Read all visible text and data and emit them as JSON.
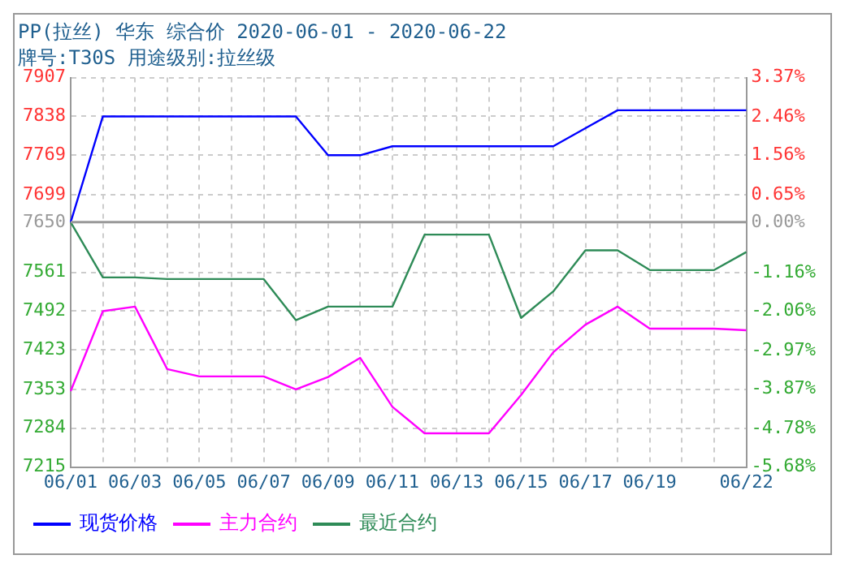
{
  "chart_data": {
    "type": "line",
    "title": "PP(拉丝) 华东 综合价 2020-06-01 - 2020-06-22",
    "subtitle": "牌号:T30S 用途级别:拉丝级",
    "categories": [
      "06/01",
      null,
      "06/03",
      null,
      "06/05",
      null,
      "06/07",
      null,
      "06/09",
      null,
      "06/11",
      null,
      "06/13",
      null,
      "06/15",
      null,
      "06/17",
      null,
      "06/19",
      null,
      null,
      "06/22"
    ],
    "series": [
      {
        "name": "现货价格",
        "color": "#0000ff",
        "values": [
          7650,
          7838,
          7838,
          7838,
          7838,
          7838,
          7838,
          7838,
          7769,
          7769,
          7785,
          7785,
          7785,
          7785,
          7785,
          7785,
          7817,
          7849,
          7849,
          7849,
          7849,
          7849
        ]
      },
      {
        "name": "主力合约",
        "color": "#ff00ff",
        "values": [
          7350,
          7492,
          7500,
          7389,
          7376,
          7376,
          7376,
          7353,
          7375,
          7409,
          7322,
          7275,
          7275,
          7275,
          7343,
          7419,
          7468,
          7500,
          7461,
          7461,
          7461,
          7458
        ]
      },
      {
        "name": "最近合约",
        "color": "#2e8b57",
        "values": [
          7650,
          7552,
          7552,
          7549,
          7549,
          7549,
          7549,
          7476,
          7500,
          7500,
          7500,
          7628,
          7628,
          7628,
          7480,
          7527,
          7600,
          7600,
          7565,
          7565,
          7565,
          7597
        ]
      }
    ],
    "ylim": [
      7215,
      7907
    ],
    "yticks": [
      7215,
      7284,
      7353,
      7423,
      7492,
      7561,
      7650,
      7699,
      7769,
      7838,
      7907
    ],
    "y2lim": [
      -5.68,
      3.37
    ],
    "y2ticks": [
      {
        "value": -5.68,
        "label": "-5.68%"
      },
      {
        "value": -4.78,
        "label": "-4.78%"
      },
      {
        "value": -3.87,
        "label": "-3.87%"
      },
      {
        "value": -2.97,
        "label": "-2.97%"
      },
      {
        "value": -2.06,
        "label": "-2.06%"
      },
      {
        "value": -1.16,
        "label": "-1.16%"
      },
      {
        "value": 0,
        "label": "0.00%"
      },
      {
        "value": 0.65,
        "label": "0.65%"
      },
      {
        "value": 1.56,
        "label": "1.56%"
      },
      {
        "value": 2.46,
        "label": "2.46%"
      },
      {
        "value": 3.37,
        "label": "3.37%"
      }
    ],
    "ref_lines": [
      {
        "axis": "y",
        "value": 7650,
        "color": "#999999"
      }
    ],
    "grid": true,
    "legend": "bottom",
    "marker": "none",
    "line_style": "solid"
  }
}
